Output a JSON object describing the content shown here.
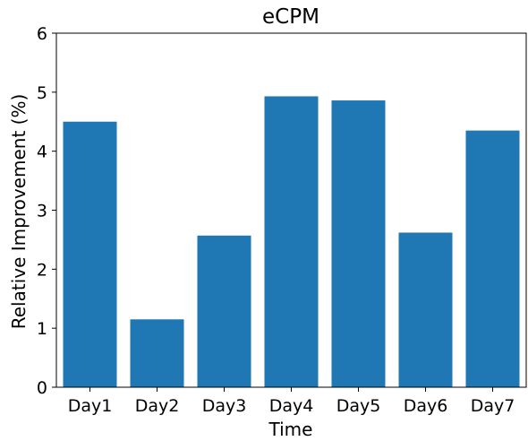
{
  "chart_data": {
    "type": "bar",
    "title": "eCPM",
    "xlabel": "Time",
    "ylabel": "Relative Improvement (%)",
    "categories": [
      "Day1",
      "Day2",
      "Day3",
      "Day4",
      "Day5",
      "Day6",
      "Day7"
    ],
    "values": [
      4.5,
      1.15,
      2.57,
      4.93,
      4.86,
      2.62,
      4.35
    ],
    "ylim": [
      0,
      6
    ],
    "yticks": [
      "0",
      "1",
      "2",
      "3",
      "4",
      "5",
      "6"
    ],
    "bar_color": "#1f77b4",
    "grid": false,
    "legend": "none"
  }
}
